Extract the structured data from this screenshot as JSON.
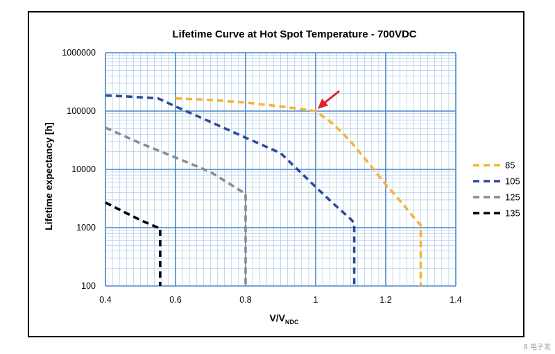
{
  "chart_data": {
    "type": "line",
    "title": "Lifetime Curve at Hot Spot Temperature - 700VDC",
    "xlabel_main": "V/V",
    "xlabel_sub": "NDC",
    "ylabel": "Lifetime expectancy [h]",
    "xlim": [
      0.4,
      1.4
    ],
    "ylim": [
      100,
      1000000
    ],
    "yscale": "log",
    "x_ticks": [
      "0.4",
      "0.6",
      "0.8",
      "1",
      "1.2",
      "1.4"
    ],
    "y_ticks": [
      "100",
      "1000",
      "10000",
      "100000",
      "1000000"
    ],
    "grid": true,
    "legend_position": "right",
    "series": [
      {
        "name": "85",
        "color": "#F4B533",
        "points": [
          [
            0.6,
            165000
          ],
          [
            0.7,
            155000
          ],
          [
            0.8,
            140000
          ],
          [
            0.9,
            120000
          ],
          [
            1.0,
            100000
          ],
          [
            1.05,
            60000
          ],
          [
            1.1,
            30000
          ],
          [
            1.15,
            13000
          ],
          [
            1.2,
            5500
          ],
          [
            1.25,
            2500
          ],
          [
            1.28,
            1500
          ],
          [
            1.3,
            1100
          ],
          [
            1.3,
            100
          ]
        ]
      },
      {
        "name": "105",
        "color": "#2E4B9B",
        "points": [
          [
            0.4,
            185000
          ],
          [
            0.45,
            180000
          ],
          [
            0.5,
            172000
          ],
          [
            0.55,
            165000
          ],
          [
            0.6,
            120000
          ],
          [
            0.7,
            65000
          ],
          [
            0.8,
            35000
          ],
          [
            0.9,
            19000
          ],
          [
            1.0,
            5000
          ],
          [
            1.05,
            2600
          ],
          [
            1.1,
            1400
          ],
          [
            1.11,
            1200
          ],
          [
            1.11,
            100
          ]
        ]
      },
      {
        "name": "125",
        "color": "#8C8C8C",
        "points": [
          [
            0.4,
            52000
          ],
          [
            0.5,
            28000
          ],
          [
            0.6,
            16000
          ],
          [
            0.7,
            9000
          ],
          [
            0.8,
            3800
          ],
          [
            0.8,
            100
          ]
        ]
      },
      {
        "name": "135",
        "color": "#000000",
        "points": [
          [
            0.4,
            2700
          ],
          [
            0.45,
            1900
          ],
          [
            0.5,
            1350
          ],
          [
            0.55,
            1000
          ],
          [
            0.556,
            1000
          ],
          [
            0.556,
            100
          ]
        ]
      }
    ],
    "annotation": {
      "type": "arrow",
      "color": "#E0202E",
      "points_to": [
        1.0,
        100000
      ]
    }
  },
  "watermark": "8 电子发"
}
